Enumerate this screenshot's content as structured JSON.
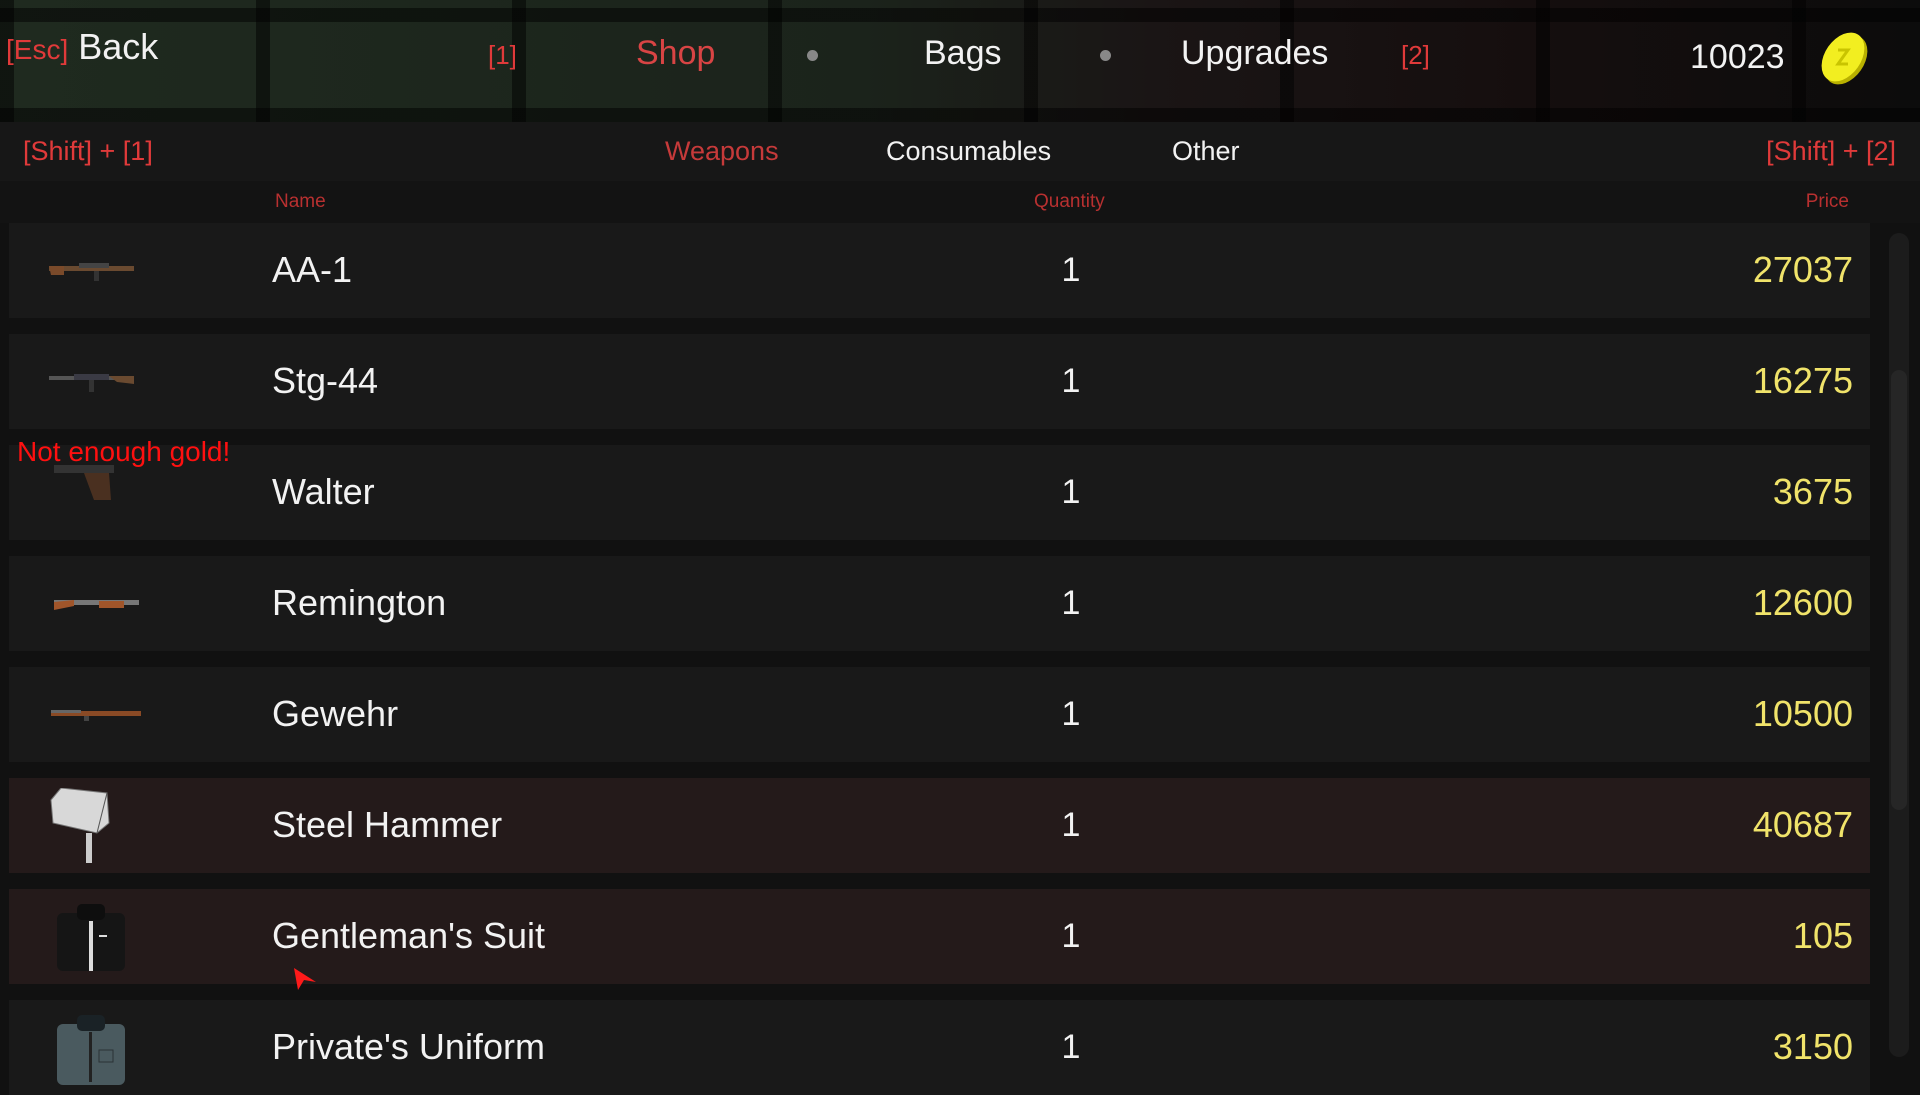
{
  "topbar": {
    "back_key": "[Esc]",
    "back_label": "Back",
    "prev_key": "[1]",
    "next_key": "[2]",
    "tabs": [
      {
        "label": "Shop",
        "active": true
      },
      {
        "label": "Bags",
        "active": false
      },
      {
        "label": "Upgrades",
        "active": false
      }
    ],
    "gold": "10023",
    "coin_icon": "gold-coin-icon"
  },
  "subtabs": {
    "prev_key": "[Shift] + [1]",
    "next_key": "[Shift] + [2]",
    "items": [
      {
        "label": "Weapons",
        "active": true
      },
      {
        "label": "Consumables",
        "active": false
      },
      {
        "label": "Other",
        "active": false
      }
    ]
  },
  "columns": {
    "name": "Name",
    "quantity": "Quantity",
    "price": "Price"
  },
  "warning": "Not enough gold!",
  "items": [
    {
      "name": "AA-1",
      "quantity": "1",
      "price": "27037",
      "icon": "rifle-icon",
      "highlighted": false
    },
    {
      "name": "Stg-44",
      "quantity": "1",
      "price": "16275",
      "icon": "assault-rifle-icon",
      "highlighted": false
    },
    {
      "name": "Walter",
      "quantity": "1",
      "price": "3675",
      "icon": "pistol-icon",
      "highlighted": false
    },
    {
      "name": "Remington",
      "quantity": "1",
      "price": "12600",
      "icon": "shotgun-icon",
      "highlighted": false
    },
    {
      "name": "Gewehr",
      "quantity": "1",
      "price": "10500",
      "icon": "bolt-rifle-icon",
      "highlighted": false
    },
    {
      "name": "Steel Hammer",
      "quantity": "1",
      "price": "40687",
      "icon": "hammer-icon",
      "highlighted": true
    },
    {
      "name": "Gentleman's Suit",
      "quantity": "1",
      "price": "105",
      "icon": "suit-icon",
      "highlighted": true
    },
    {
      "name": "Private's Uniform",
      "quantity": "1",
      "price": "3150",
      "icon": "uniform-icon",
      "highlighted": false
    }
  ],
  "colors": {
    "accent_red": "#e03a3a",
    "price_yellow": "#f0e36a",
    "highlight_row": "#241a1a"
  }
}
